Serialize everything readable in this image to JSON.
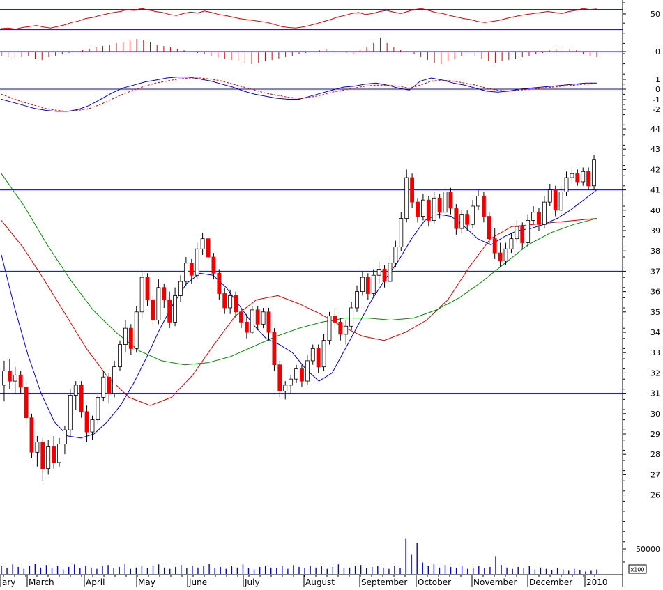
{
  "chart_data": [
    {
      "type": "line",
      "panel": "rsi",
      "y_ticks": [
        "50"
      ],
      "reference_levels": [
        70,
        30
      ],
      "ylim": [
        0,
        100
      ],
      "series": [
        {
          "color": "#d40000",
          "values": [
            32,
            33,
            31,
            34,
            36,
            38,
            35,
            33,
            36,
            39,
            44,
            47,
            52,
            54,
            58,
            61,
            64,
            66,
            70,
            68,
            72,
            69,
            66,
            64,
            60,
            58,
            62,
            65,
            63,
            67,
            64,
            60,
            58,
            55,
            52,
            50,
            48,
            46,
            44,
            40,
            36,
            34,
            33,
            35,
            38,
            42,
            46,
            50,
            55,
            58,
            62,
            64,
            60,
            62,
            66,
            68,
            65,
            62,
            66,
            70,
            72,
            68,
            64,
            62,
            58,
            55,
            52,
            50,
            46,
            44,
            46,
            48,
            52,
            55,
            58,
            60,
            62,
            64,
            66,
            64,
            62,
            66,
            68,
            72,
            70,
            71
          ]
        }
      ]
    },
    {
      "type": "bar",
      "panel": "momentum-histogram",
      "y_ticks": [
        "0"
      ],
      "ylim": [
        -12,
        12
      ],
      "values": [
        -3,
        -4,
        -5,
        -4,
        -3,
        -5,
        -6,
        -4,
        -3,
        -2,
        -1,
        0,
        1,
        2,
        3,
        4,
        5,
        6,
        7,
        8,
        9,
        8,
        7,
        5,
        4,
        3,
        2,
        1,
        0,
        -1,
        -2,
        -3,
        -4,
        -5,
        -6,
        -7,
        -8,
        -9,
        -8,
        -7,
        -6,
        -5,
        -4,
        -3,
        -2,
        -1,
        0,
        1,
        2,
        1,
        0,
        -1,
        -2,
        1,
        3,
        6,
        10,
        6,
        3,
        1,
        0,
        -2,
        -4,
        -6,
        -8,
        -9,
        -7,
        -5,
        -3,
        -1,
        -3,
        -5,
        -7,
        -8,
        -7,
        -6,
        -5,
        -4,
        -3,
        -2,
        -1,
        1,
        2,
        3,
        2,
        1,
        -2,
        -3,
        -4
      ]
    },
    {
      "type": "line",
      "panel": "macd",
      "y_ticks": [
        "1",
        "0",
        "-1",
        "-2"
      ],
      "ylim": [
        -2.5,
        1.5
      ],
      "series": [
        {
          "color": "#0000cc",
          "style": "solid",
          "values": [
            -1.0,
            -1.3,
            -1.6,
            -1.9,
            -2.1,
            -2.2,
            -2.2,
            -2.0,
            -1.6,
            -1.0,
            -0.4,
            0.1,
            0.4,
            0.7,
            0.9,
            1.1,
            1.2,
            1.2,
            1.0,
            0.8,
            0.5,
            0.2,
            -0.2,
            -0.5,
            -0.7,
            -0.9,
            -1.0,
            -1.0,
            -0.7,
            -0.4,
            -0.1,
            0.2,
            0.3,
            0.5,
            0.6,
            0.4,
            0.1,
            -0.1,
            0.8,
            1.1,
            0.9,
            0.6,
            0.4,
            0.1,
            -0.2,
            -0.3,
            -0.2,
            0.0,
            0.1,
            0.2,
            0.3,
            0.4,
            0.5,
            0.6,
            0.6
          ]
        },
        {
          "color": "#d40000",
          "style": "dashed",
          "values": [
            -0.5,
            -0.9,
            -1.3,
            -1.6,
            -1.9,
            -2.1,
            -2.2,
            -2.1,
            -1.9,
            -1.5,
            -1.0,
            -0.5,
            -0.1,
            0.3,
            0.6,
            0.8,
            1.0,
            1.1,
            1.1,
            1.0,
            0.8,
            0.5,
            0.2,
            -0.1,
            -0.4,
            -0.6,
            -0.8,
            -0.9,
            -0.8,
            -0.6,
            -0.3,
            -0.1,
            0.1,
            0.3,
            0.4,
            0.4,
            0.3,
            0.1,
            0.4,
            0.8,
            0.9,
            0.8,
            0.6,
            0.4,
            0.1,
            -0.1,
            -0.2,
            -0.1,
            0.0,
            0.1,
            0.2,
            0.3,
            0.4,
            0.5,
            0.6
          ]
        }
      ]
    },
    {
      "type": "candlestick",
      "panel": "price",
      "y_ticks": [
        "44",
        "43",
        "42",
        "41",
        "40",
        "39",
        "38",
        "37",
        "36",
        "35",
        "34",
        "33",
        "32",
        "31",
        "30",
        "29",
        "28",
        "27",
        "26"
      ],
      "ylim": [
        25.4,
        44.6
      ],
      "horizontal_levels": [
        41,
        37,
        31
      ],
      "bullish_color": "#ffffff",
      "bearish_color": "#ee0000",
      "candles": [
        [
          31.4,
          32.6,
          30.6,
          32.1
        ],
        [
          32.1,
          32.7,
          31.2,
          31.6
        ],
        [
          31.6,
          32.3,
          31.0,
          31.9
        ],
        [
          31.9,
          32.1,
          31.0,
          31.3
        ],
        [
          31.3,
          31.6,
          29.4,
          29.8
        ],
        [
          29.8,
          30.0,
          27.8,
          28.1
        ],
        [
          28.1,
          28.9,
          27.4,
          28.6
        ],
        [
          28.6,
          28.8,
          26.7,
          27.3
        ],
        [
          27.3,
          28.7,
          27.0,
          28.4
        ],
        [
          28.4,
          28.9,
          27.3,
          27.6
        ],
        [
          27.6,
          28.8,
          27.4,
          28.5
        ],
        [
          28.5,
          29.4,
          28.0,
          29.2
        ],
        [
          29.2,
          31.2,
          28.9,
          30.9
        ],
        [
          30.9,
          31.6,
          30.2,
          31.4
        ],
        [
          31.4,
          31.6,
          29.8,
          30.1
        ],
        [
          30.1,
          30.4,
          28.6,
          29.1
        ],
        [
          29.1,
          29.9,
          28.7,
          29.7
        ],
        [
          29.7,
          31.0,
          29.5,
          30.8
        ],
        [
          30.8,
          32.1,
          30.6,
          31.8
        ],
        [
          31.8,
          32.0,
          30.5,
          31.0
        ],
        [
          31.0,
          32.6,
          30.8,
          32.3
        ],
        [
          32.3,
          33.6,
          32.1,
          33.4
        ],
        [
          33.4,
          34.6,
          33.0,
          34.2
        ],
        [
          34.2,
          34.4,
          32.9,
          33.2
        ],
        [
          33.2,
          35.3,
          33.0,
          35.0
        ],
        [
          35.0,
          37.0,
          34.7,
          36.7
        ],
        [
          36.7,
          36.9,
          35.3,
          35.6
        ],
        [
          35.6,
          35.8,
          34.3,
          34.6
        ],
        [
          34.6,
          36.6,
          34.4,
          36.2
        ],
        [
          36.2,
          36.4,
          35.2,
          35.6
        ],
        [
          35.6,
          36.0,
          34.2,
          34.5
        ],
        [
          34.5,
          36.2,
          34.3,
          35.8
        ],
        [
          35.8,
          36.8,
          35.5,
          36.5
        ],
        [
          36.5,
          37.7,
          36.3,
          37.4
        ],
        [
          37.4,
          37.6,
          36.4,
          36.8
        ],
        [
          36.8,
          38.4,
          36.6,
          38.1
        ],
        [
          38.1,
          38.9,
          37.8,
          38.6
        ],
        [
          38.6,
          38.8,
          37.4,
          37.7
        ],
        [
          37.7,
          37.9,
          36.6,
          36.9
        ],
        [
          36.9,
          37.1,
          35.6,
          35.9
        ],
        [
          35.9,
          36.2,
          34.9,
          35.2
        ],
        [
          35.2,
          36.1,
          34.9,
          35.8
        ],
        [
          35.8,
          36.0,
          34.7,
          35.0
        ],
        [
          35.0,
          35.2,
          34.2,
          34.5
        ],
        [
          34.5,
          34.9,
          33.7,
          34.0
        ],
        [
          34.0,
          35.3,
          33.9,
          35.1
        ],
        [
          35.1,
          35.3,
          34.1,
          34.4
        ],
        [
          34.4,
          35.2,
          34.2,
          35.0
        ],
        [
          35.0,
          35.2,
          33.6,
          34.0
        ],
        [
          34.0,
          34.2,
          32.1,
          32.4
        ],
        [
          32.4,
          32.6,
          30.8,
          31.1
        ],
        [
          31.1,
          31.6,
          30.7,
          31.4
        ],
        [
          31.4,
          31.9,
          31.0,
          31.7
        ],
        [
          31.7,
          32.4,
          31.5,
          32.2
        ],
        [
          32.2,
          32.4,
          31.3,
          31.6
        ],
        [
          31.6,
          32.9,
          31.4,
          32.6
        ],
        [
          32.6,
          33.4,
          32.4,
          33.2
        ],
        [
          33.2,
          33.4,
          32.0,
          32.3
        ],
        [
          32.3,
          33.9,
          32.1,
          33.6
        ],
        [
          33.6,
          35.0,
          33.4,
          34.8
        ],
        [
          34.8,
          35.2,
          34.2,
          34.5
        ],
        [
          34.5,
          34.7,
          33.6,
          33.9
        ],
        [
          33.9,
          34.6,
          33.4,
          34.3
        ],
        [
          34.3,
          35.5,
          34.1,
          35.2
        ],
        [
          35.2,
          36.3,
          35.0,
          36.0
        ],
        [
          36.0,
          37.0,
          35.8,
          36.7
        ],
        [
          36.7,
          36.9,
          35.6,
          35.9
        ],
        [
          35.9,
          37.1,
          35.7,
          36.8
        ],
        [
          36.8,
          37.5,
          36.4,
          37.1
        ],
        [
          37.1,
          37.3,
          36.2,
          36.5
        ],
        [
          36.5,
          37.7,
          36.3,
          37.4
        ],
        [
          37.4,
          38.5,
          37.2,
          38.2
        ],
        [
          38.2,
          39.9,
          38.0,
          39.6
        ],
        [
          39.6,
          42.0,
          39.4,
          41.6
        ],
        [
          41.6,
          41.8,
          40.1,
          40.4
        ],
        [
          40.4,
          40.6,
          39.4,
          39.7
        ],
        [
          39.7,
          40.8,
          39.5,
          40.5
        ],
        [
          40.5,
          40.7,
          39.2,
          39.5
        ],
        [
          39.5,
          40.9,
          39.3,
          40.6
        ],
        [
          40.6,
          40.8,
          39.6,
          39.9
        ],
        [
          39.9,
          41.2,
          39.7,
          40.9
        ],
        [
          40.9,
          41.1,
          39.8,
          40.1
        ],
        [
          40.1,
          40.3,
          38.8,
          39.1
        ],
        [
          39.1,
          40.0,
          38.9,
          39.8
        ],
        [
          39.8,
          40.0,
          39.0,
          39.3
        ],
        [
          39.3,
          40.5,
          39.1,
          40.2
        ],
        [
          40.2,
          41.0,
          40.0,
          40.7
        ],
        [
          40.7,
          40.9,
          39.4,
          39.7
        ],
        [
          39.7,
          39.9,
          38.3,
          38.6
        ],
        [
          38.6,
          39.1,
          37.6,
          37.9
        ],
        [
          37.9,
          38.4,
          37.2,
          37.5
        ],
        [
          37.5,
          38.4,
          37.3,
          38.1
        ],
        [
          38.1,
          38.9,
          37.9,
          38.6
        ],
        [
          38.6,
          39.5,
          38.4,
          39.2
        ],
        [
          39.2,
          39.4,
          38.1,
          38.4
        ],
        [
          38.4,
          39.8,
          38.2,
          39.5
        ],
        [
          39.5,
          40.2,
          39.3,
          39.9
        ],
        [
          39.9,
          40.1,
          39.0,
          39.3
        ],
        [
          39.3,
          40.7,
          39.1,
          40.4
        ],
        [
          40.4,
          41.3,
          40.2,
          41.0
        ],
        [
          41.0,
          41.2,
          39.7,
          40.0
        ],
        [
          40.0,
          41.2,
          39.8,
          40.9
        ],
        [
          40.9,
          41.9,
          40.7,
          41.6
        ],
        [
          41.6,
          42.0,
          41.3,
          41.8
        ],
        [
          41.8,
          42.0,
          41.2,
          41.4
        ],
        [
          41.4,
          42.1,
          41.2,
          41.9
        ],
        [
          41.9,
          42.1,
          41.0,
          41.2
        ],
        [
          41.2,
          42.7,
          41.0,
          42.5
        ]
      ],
      "series": [
        {
          "color": "#0000cc",
          "values": [
            37.8,
            35.2,
            32.9,
            31.0,
            29.6,
            28.9,
            28.8,
            29.0,
            29.6,
            30.4,
            31.5,
            32.8,
            34.2,
            35.4,
            36.4,
            36.9,
            36.8,
            36.2,
            35.3,
            34.4,
            33.7,
            33.4,
            33.0,
            32.2,
            31.6,
            32.0,
            33.2,
            34.4,
            35.6,
            36.6,
            37.5,
            38.6,
            39.5,
            39.8,
            39.7,
            39.2,
            38.6,
            38.3,
            38.7,
            39.0,
            39.1,
            39.3,
            39.6,
            40.0,
            40.5,
            41.0
          ]
        },
        {
          "color": "#d40000",
          "values": [
            39.5,
            38.2,
            36.6,
            34.9,
            33.2,
            31.8,
            30.8,
            30.4,
            30.8,
            31.9,
            33.4,
            34.8,
            35.6,
            35.8,
            35.4,
            34.9,
            34.3,
            33.8,
            33.6,
            34.0,
            34.6,
            35.6,
            37.2,
            38.6,
            39.2,
            39.3,
            39.4,
            39.5,
            39.6
          ]
        },
        {
          "color": "#008800",
          "values": [
            41.8,
            40.2,
            38.3,
            36.6,
            35.1,
            34.0,
            33.1,
            32.6,
            32.4,
            32.5,
            32.8,
            33.3,
            33.8,
            34.2,
            34.5,
            34.7,
            34.7,
            34.6,
            34.7,
            35.1,
            35.7,
            36.5,
            37.4,
            38.3,
            38.9,
            39.3,
            39.6
          ]
        }
      ]
    },
    {
      "type": "bar",
      "panel": "volume",
      "y_ticks": [
        "50000"
      ],
      "ylim": [
        0,
        60000
      ],
      "values": [
        12000,
        9000,
        15000,
        11000,
        8000,
        13000,
        16000,
        10000,
        14000,
        9000,
        12000,
        7000,
        11000,
        15000,
        9000,
        13000,
        10000,
        8000,
        12000,
        14000,
        9000,
        11000,
        16000,
        8000,
        10000,
        13000,
        9000,
        12000,
        15000,
        10000,
        8000,
        11000,
        14000,
        9000,
        12000,
        10000,
        13000,
        16000,
        9000,
        11000,
        8000,
        12000,
        10000,
        15000,
        9000,
        7000,
        11000,
        13000,
        10000,
        9000,
        12000,
        8000,
        14000,
        11000,
        9000,
        13000,
        10000,
        12000,
        8000,
        11000,
        15000,
        9000,
        10000,
        12000,
        14000,
        9000,
        11000,
        13000,
        10000,
        8000,
        12000,
        9000,
        55000,
        30000,
        48000,
        18000,
        12000,
        15000,
        10000,
        14000,
        11000,
        9000,
        13000,
        8000,
        10000,
        12000,
        9000,
        11000,
        28000,
        14000,
        10000,
        8000,
        11000,
        9000,
        12000,
        7000,
        10000,
        8000,
        6000,
        9000,
        7000,
        5000,
        8000,
        6000,
        4000,
        5000,
        7000
      ],
      "unit": "x100"
    }
  ],
  "x_labels": [
    "ary",
    "March",
    "April",
    "May",
    "June",
    "July",
    "August",
    "September",
    "October",
    "November",
    "December",
    "2010"
  ]
}
